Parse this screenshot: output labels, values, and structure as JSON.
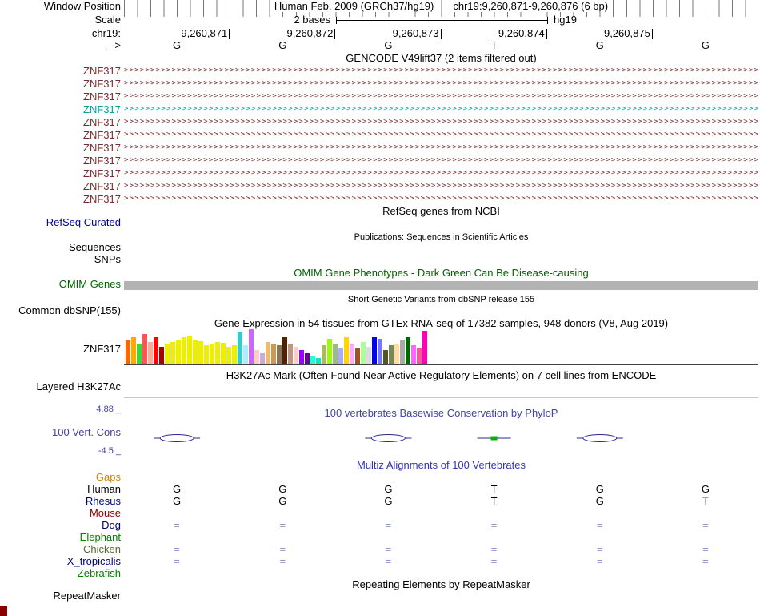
{
  "meta": {
    "assembly_title": "Human Feb. 2009 (GRCh37/hg19)",
    "position_range": "chr19:9,260,871-9,260,876 (6 bp)"
  },
  "labels": {
    "window_position": "Window Position",
    "scale": "Scale",
    "chrom": "chr19:",
    "strand": "--->",
    "refseq_curated": "RefSeq Curated",
    "sequences": "Sequences",
    "snps": "SNPs",
    "omim_genes": "OMIM Genes",
    "common_dbsnp": "Common dbSNP(155)",
    "gtex_gene": "ZNF317",
    "layered_h3k27ac": "Layered H3K27Ac",
    "cons": "100 Vert. Cons",
    "repeatmasker": "RepeatMasker"
  },
  "scale": {
    "value": "2 bases",
    "genome": "hg19"
  },
  "ruler": {
    "positions": [
      "9,260,871",
      "9,260,872",
      "9,260,873",
      "9,260,874",
      "9,260,875"
    ]
  },
  "bases": [
    "G",
    "G",
    "G",
    "T",
    "G",
    "G"
  ],
  "gencode": {
    "header": "GENCODE V49lift37 (2 items filtered out)",
    "transcripts": [
      {
        "label": "ZNF317",
        "color": "#7b2b2b"
      },
      {
        "label": "ZNF317",
        "color": "#7b2b2b"
      },
      {
        "label": "ZNF317",
        "color": "#7b2b2b"
      },
      {
        "label": "ZNF317",
        "color": "#00a2a2"
      },
      {
        "label": "ZNF317",
        "color": "#7b2b2b"
      },
      {
        "label": "ZNF317",
        "color": "#7b2b2b"
      },
      {
        "label": "ZNF317",
        "color": "#7b2b2b"
      },
      {
        "label": "ZNF317",
        "color": "#7b2b2b"
      },
      {
        "label": "ZNF317",
        "color": "#7b2b2b"
      },
      {
        "label": "ZNF317",
        "color": "#7b2b2b"
      },
      {
        "label": "ZNF317",
        "color": "#7b2b2b"
      }
    ]
  },
  "refseq": {
    "header": "RefSeq genes from NCBI"
  },
  "publications": {
    "header": "Publications: Sequences in Scientific Articles"
  },
  "omim": {
    "header": "OMIM Gene Phenotypes - Dark Green Can Be Disease-causing"
  },
  "dbsnp": {
    "header": "Short Genetic Variants from dbSNP release 155"
  },
  "gtex": {
    "header": "Gene Expression in 54 tissues from GTEx RNA-seq of 17382 samples, 948 donors (V8, Aug 2019)"
  },
  "chart_data": {
    "type": "bar",
    "title": "Gene Expression in 54 tissues from GTEx RNA-seq of 17382 samples, 948 donors (V8, Aug 2019)",
    "gene": "ZNF317",
    "n_bars": 54,
    "ylim": [
      0,
      45
    ],
    "values": [
      30,
      34,
      26,
      38,
      28,
      34,
      22,
      26,
      28,
      30,
      34,
      36,
      30,
      29,
      24,
      26,
      28,
      27,
      22,
      24,
      40,
      24,
      44,
      18,
      14,
      28,
      26,
      24,
      34,
      26,
      22,
      18,
      14,
      10,
      8,
      24,
      32,
      26,
      20,
      34,
      26,
      20,
      28,
      22,
      34,
      32,
      18,
      24,
      26,
      30,
      34,
      24,
      20,
      42
    ],
    "colors": [
      "#FF6600",
      "#FFAA00",
      "#33DD33",
      "#FF5555",
      "#FFAA99",
      "#FF0000",
      "#AA0000",
      "#EEEE00",
      "#EEEE00",
      "#EEEE00",
      "#EEEE00",
      "#EEEE00",
      "#EEEE00",
      "#EEEE00",
      "#EEEE00",
      "#EEEE00",
      "#EEEE00",
      "#EEEE00",
      "#EEEE00",
      "#EEEE00",
      "#33CCCC",
      "#AAEEFF",
      "#CC66FF",
      "#FFCCCC",
      "#CCAADD",
      "#EEBB77",
      "#CC9955",
      "#8B7355",
      "#552200",
      "#BB9988",
      "#FFCCCC",
      "#9900FF",
      "#660099",
      "#22FFDD",
      "#00EEBB",
      "#AABB66",
      "#99FF00",
      "#99BB88",
      "#AAAAFF",
      "#FFD700",
      "#FFAAFF",
      "#995522",
      "#AAFF99",
      "#DDDDDD",
      "#0000FF",
      "#7777FF",
      "#555522",
      "#778855",
      "#FFDD99",
      "#AAAAAA",
      "#006600",
      "#FF66FF",
      "#FF5599",
      "#FF00BB"
    ]
  },
  "encode": {
    "header": "H3K27Ac Mark (Often Found Near Active Regulatory Elements) on 7 cell lines from ENCODE"
  },
  "conservation": {
    "header": "100 vertebrates Basewise Conservation by PhyloP",
    "max_label": "4.88 _",
    "min_label": "-4.5 _",
    "marks": [
      {
        "base": 1,
        "type": "ellipse"
      },
      {
        "base": 3,
        "type": "ellipse"
      },
      {
        "base": 4,
        "type": "green-tick"
      },
      {
        "base": 5,
        "type": "ellipse"
      }
    ]
  },
  "multiz": {
    "header": "Multiz Alignments of 100 Vertebrates",
    "rows": [
      {
        "label": "Gaps",
        "label_color": "#cc8800",
        "cells": []
      },
      {
        "label": "Human",
        "label_color": "#000000",
        "cells": [
          {
            "t": "G",
            "c": "#000000"
          },
          {
            "t": "G",
            "c": "#000000"
          },
          {
            "t": "G",
            "c": "#000000"
          },
          {
            "t": "T",
            "c": "#000000"
          },
          {
            "t": "G",
            "c": "#000000"
          },
          {
            "t": "G",
            "c": "#000000"
          }
        ]
      },
      {
        "label": "Rhesus",
        "label_color": "#000080",
        "cells": [
          {
            "t": "G",
            "c": "#000000"
          },
          {
            "t": "G",
            "c": "#000000"
          },
          {
            "t": "G",
            "c": "#000000"
          },
          {
            "t": "T",
            "c": "#000000"
          },
          {
            "t": "G",
            "c": "#000000"
          },
          {
            "t": "T",
            "c": "#93a0c8"
          }
        ]
      },
      {
        "label": "Mouse",
        "label_color": "#8b0000",
        "cells": []
      },
      {
        "label": "Dog",
        "label_color": "#000060",
        "cells": [
          {
            "t": "=",
            "c": "#8899cc"
          },
          {
            "t": "=",
            "c": "#8899cc"
          },
          {
            "t": "=",
            "c": "#8899cc"
          },
          {
            "t": "=",
            "c": "#8899cc"
          },
          {
            "t": "=",
            "c": "#8899cc"
          },
          {
            "t": "=",
            "c": "#8899cc"
          }
        ]
      },
      {
        "label": "Elephant",
        "label_color": "#008000",
        "cells": []
      },
      {
        "label": "Chicken",
        "label_color": "#556b2f",
        "cells": [
          {
            "t": "=",
            "c": "#8899cc"
          },
          {
            "t": "=",
            "c": "#8899cc"
          },
          {
            "t": "=",
            "c": "#8899cc"
          },
          {
            "t": "=",
            "c": "#8899cc"
          },
          {
            "t": "=",
            "c": "#8899cc"
          },
          {
            "t": "=",
            "c": "#8899cc"
          }
        ]
      },
      {
        "label": "X_tropicalis",
        "label_color": "#000080",
        "cells": [
          {
            "t": "=",
            "c": "#8899cc"
          },
          {
            "t": "=",
            "c": "#8899cc"
          },
          {
            "t": "=",
            "c": "#8899cc"
          },
          {
            "t": "=",
            "c": "#8899cc"
          },
          {
            "t": "=",
            "c": "#8899cc"
          },
          {
            "t": "=",
            "c": "#8899cc"
          }
        ]
      },
      {
        "label": "Zebrafish",
        "label_color": "#008000",
        "cells": []
      }
    ]
  },
  "repeats": {
    "header": "Repeating Elements by RepeatMasker"
  },
  "colors": {
    "navy": "#00008b",
    "omim_green": "#006400",
    "omim_bar": "#b3b3b3",
    "cons_blue": "#4343a8",
    "multiz_blue": "#3333bb",
    "cons_mark": "#28288c",
    "cons_green": "#00b400",
    "sidebar_red": "#8b0000"
  }
}
